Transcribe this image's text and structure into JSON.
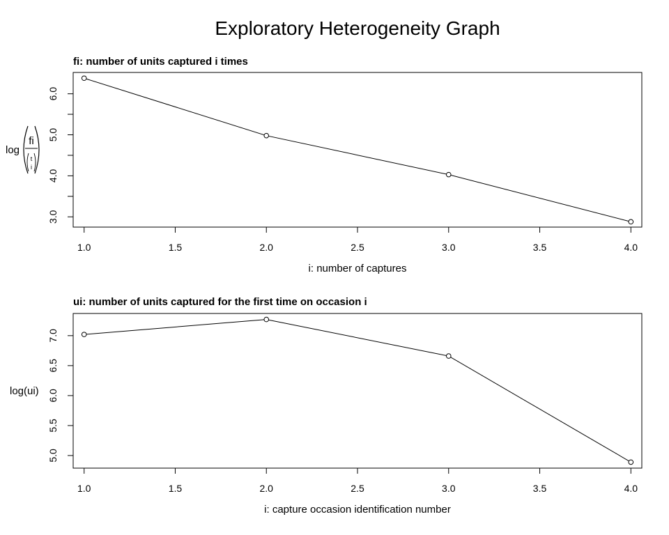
{
  "title": "Exploratory Heterogeneity Graph",
  "chart_data": [
    {
      "type": "line",
      "title": "fi: number of units captured i times",
      "xlabel": "i: number of captures",
      "ylabel": {
        "prefix": "log",
        "fraction_numerator": "fi",
        "binomial_top": "t",
        "binomial_bottom": "i"
      },
      "x": [
        1,
        2,
        3,
        4
      ],
      "y": [
        6.38,
        4.98,
        4.03,
        2.88
      ],
      "xlim": [
        0.94,
        4.06
      ],
      "ylim": [
        2.75,
        6.52
      ],
      "xticks": [
        1.0,
        1.5,
        2.0,
        2.5,
        3.0,
        3.5,
        4.0
      ],
      "xtick_labels": [
        "1.0",
        "1.5",
        "2.0",
        "2.5",
        "3.0",
        "3.5",
        "4.0"
      ],
      "yticks": [
        3.0,
        3.5,
        4.0,
        4.5,
        5.0,
        5.5,
        6.0
      ],
      "ytick_labels": [
        "3.0",
        "",
        "4.0",
        "",
        "5.0",
        "",
        "6.0"
      ],
      "markers": "open-circle",
      "grid": false
    },
    {
      "type": "line",
      "title": "ui: number of units captured for the first time on occasion i",
      "xlabel": "i: capture occasion identification number",
      "ylabel": "log(ui)",
      "x": [
        1,
        2,
        3,
        4
      ],
      "y": [
        7.02,
        7.27,
        6.66,
        4.89
      ],
      "xlim": [
        0.94,
        4.06
      ],
      "ylim": [
        4.79,
        7.37
      ],
      "xticks": [
        1.0,
        1.5,
        2.0,
        2.5,
        3.0,
        3.5,
        4.0
      ],
      "xtick_labels": [
        "1.0",
        "1.5",
        "2.0",
        "2.5",
        "3.0",
        "3.5",
        "4.0"
      ],
      "yticks": [
        5.0,
        5.5,
        6.0,
        6.5,
        7.0
      ],
      "ytick_labels": [
        "5.0",
        "5.5",
        "6.0",
        "6.5",
        "7.0"
      ],
      "markers": "open-circle",
      "grid": false
    }
  ]
}
